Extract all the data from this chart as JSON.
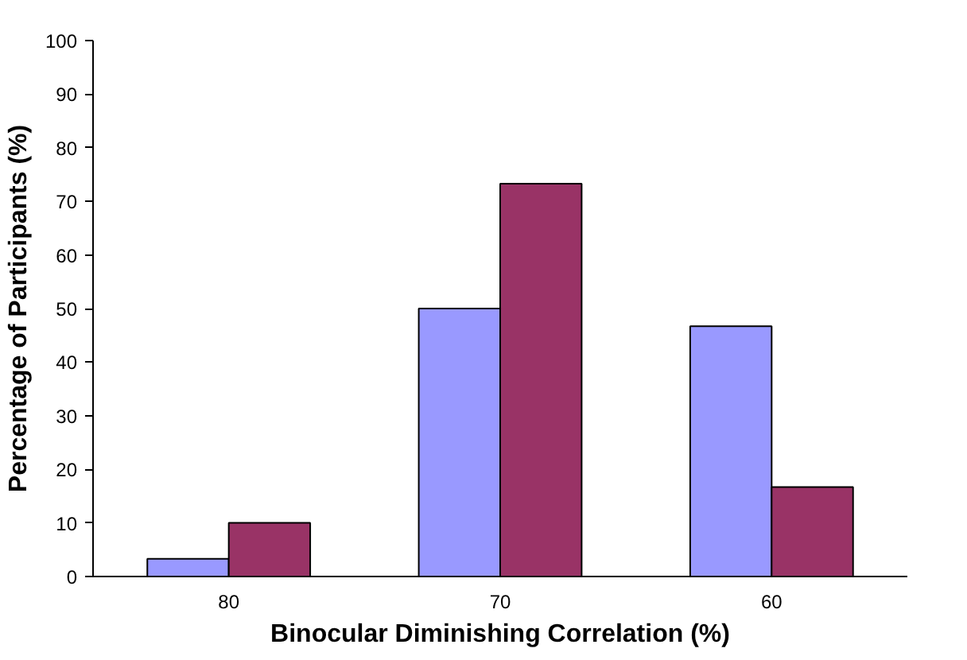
{
  "chart_data": {
    "type": "bar",
    "xlabel": "Binocular Diminishing Correlation (%)",
    "ylabel": "Percentage of Participants (%)",
    "categories": [
      "80",
      "70",
      "60"
    ],
    "series": [
      {
        "color": "#9999ff",
        "values": [
          3.3,
          50,
          46.7
        ]
      },
      {
        "color": "#993366",
        "values": [
          10,
          73.3,
          16.7
        ]
      }
    ],
    "ylim": [
      0,
      100
    ],
    "yticks": [
      0,
      10,
      20,
      30,
      40,
      50,
      60,
      70,
      80,
      90,
      100
    ],
    "grid": false
  }
}
